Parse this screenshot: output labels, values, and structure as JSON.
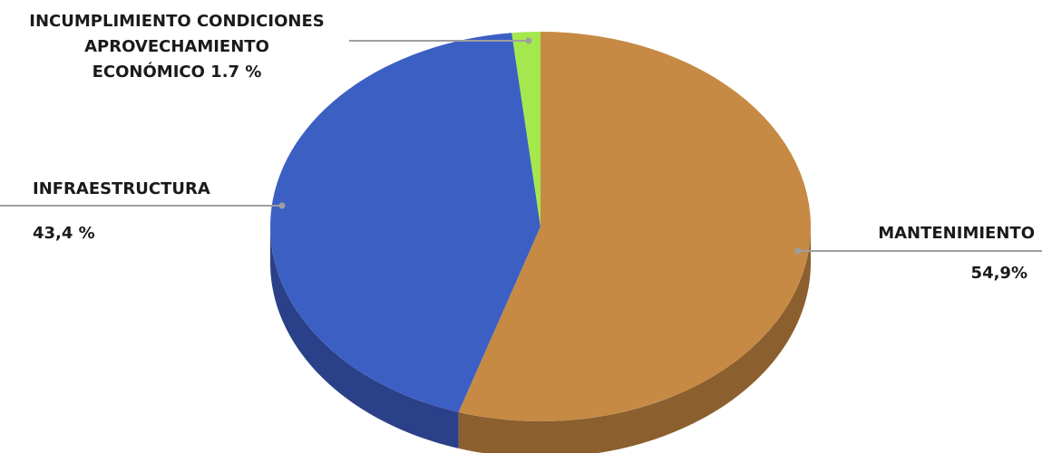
{
  "chart_data": {
    "type": "pie",
    "title": "",
    "slices": [
      {
        "name": "MANTENIMIENTO",
        "value": 54.9,
        "label": "54,9%",
        "color": "#C68A44",
        "side_color": "#8B5F2E"
      },
      {
        "name": "INFRAESTRUCTURA",
        "value": 43.4,
        "label": "43,4 %",
        "color": "#3C5FC4",
        "side_color": "#2A4189"
      },
      {
        "name": "INCUMPLIMIENTO CONDICIONES APROVECHAMIENTO ECONÓMICO",
        "value": 1.7,
        "label": "1.7 %",
        "color": "#A4E84E",
        "side_color": "#6FA332"
      }
    ],
    "labels": {
      "mant_name": "MANTENIMIENTO",
      "mant_value": "54,9%",
      "infra_name": "INFRAESTRUCTURA",
      "infra_value": "43,4 %",
      "incum_line1": "INCUMPLIMIENTO CONDICIONES",
      "incum_line2": "APROVECHAMIENTO",
      "incum_line3": "ECONÓMICO 1.7 %"
    },
    "leader_line_color": "#9E9E9E",
    "legend": "none",
    "style": "3d"
  }
}
